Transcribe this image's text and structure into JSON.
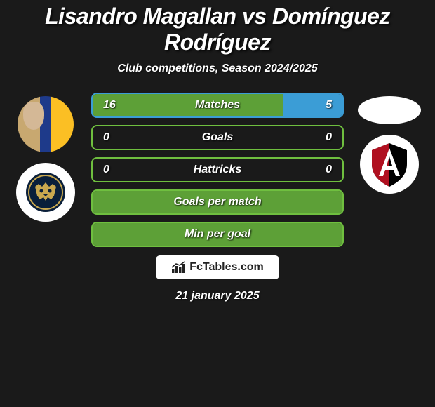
{
  "title": "Lisandro Magallan vs Domínguez Rodríguez",
  "subtitle": "Club competitions, Season 2024/2025",
  "date": "21 january 2025",
  "brand": "FcTables.com",
  "colors": {
    "green_border": "#6fbf3f",
    "green_fill": "#5da037",
    "blue_fill": "#3b9dd6",
    "blue_border": "#3b9dd6"
  },
  "stats": [
    {
      "label": "Matches",
      "left_val": "16",
      "right_val": "5",
      "border_color": "#3b9dd6",
      "left_fill_color": "#5da037",
      "left_fill_pct": 76,
      "right_fill_color": "#3b9dd6",
      "right_fill_pct": 24
    },
    {
      "label": "Goals",
      "left_val": "0",
      "right_val": "0",
      "border_color": "#6fbf3f",
      "left_fill_color": "transparent",
      "left_fill_pct": 0,
      "right_fill_color": "transparent",
      "right_fill_pct": 0
    },
    {
      "label": "Hattricks",
      "left_val": "0",
      "right_val": "0",
      "border_color": "#6fbf3f",
      "left_fill_color": "transparent",
      "left_fill_pct": 0,
      "right_fill_color": "transparent",
      "right_fill_pct": 0
    },
    {
      "label": "Goals per match",
      "left_val": "",
      "right_val": "",
      "border_color": "#6fbf3f",
      "left_fill_color": "#5da037",
      "left_fill_pct": 100,
      "right_fill_color": "transparent",
      "right_fill_pct": 0
    },
    {
      "label": "Min per goal",
      "left_val": "",
      "right_val": "",
      "border_color": "#6fbf3f",
      "left_fill_color": "#5da037",
      "left_fill_pct": 100,
      "right_fill_color": "transparent",
      "right_fill_pct": 0
    }
  ]
}
